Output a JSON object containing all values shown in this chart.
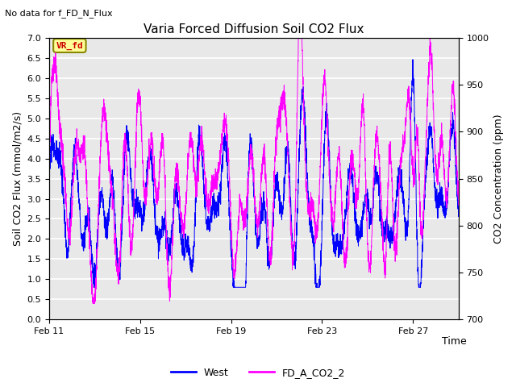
{
  "title": "Varia Forced Diffusion Soil CO2 Flux",
  "no_data_text": "No data for f_FD_N_Flux",
  "xlabel": "Time",
  "ylabel_left": "Soil CO2 Flux (mmol/m2/s)",
  "ylabel_right": "CO2 Concentration (ppm)",
  "ylim_left": [
    0.0,
    7.0
  ],
  "ylim_right": [
    700,
    1000
  ],
  "yticks_left": [
    0.0,
    0.5,
    1.0,
    1.5,
    2.0,
    2.5,
    3.0,
    3.5,
    4.0,
    4.5,
    5.0,
    5.5,
    6.0,
    6.5,
    7.0
  ],
  "yticks_right": [
    700,
    750,
    800,
    850,
    900,
    950,
    1000
  ],
  "xtick_labels": [
    "Feb 11",
    "Feb 15",
    "Feb 19",
    "Feb 23",
    "Feb 27"
  ],
  "xtick_positions": [
    0,
    4,
    8,
    12,
    16
  ],
  "xlim": [
    0,
    18
  ],
  "legend_entries": [
    "West",
    "FD_A_CO2_2"
  ],
  "line_color_blue": "#0000FF",
  "line_color_magenta": "#FF00FF",
  "background_color": "#E8E8E8",
  "grid_color": "white",
  "annotation_text": "VR_fd",
  "annotation_box_facecolor": "#FFFF99",
  "annotation_box_edgecolor": "#888800",
  "annotation_text_color": "#CC0000",
  "figsize": [
    6.4,
    4.8
  ],
  "dpi": 100
}
